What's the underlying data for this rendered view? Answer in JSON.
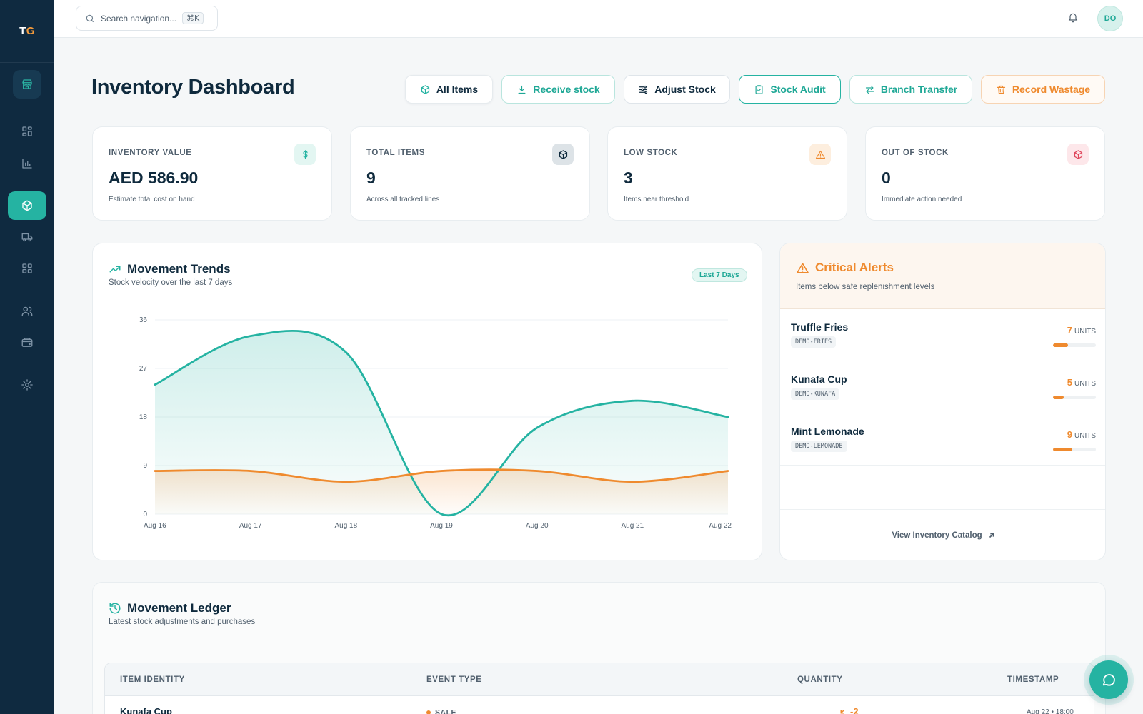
{
  "app": {
    "logo_t": "T",
    "logo_g": "G"
  },
  "sidebar": {
    "items": [
      {
        "name": "store-icon"
      },
      {
        "name": "dashboard-grid-icon"
      },
      {
        "name": "bar-chart-icon"
      },
      {
        "name": "box-icon",
        "active": true
      },
      {
        "name": "truck-icon"
      },
      {
        "name": "apps-grid-icon"
      },
      {
        "name": "users-icon"
      },
      {
        "name": "wallet-icon"
      },
      {
        "name": "gear-icon"
      }
    ]
  },
  "topbar": {
    "search_placeholder": "Search navigation...",
    "shortcut": "⌘K",
    "avatar_initials": "DO"
  },
  "header": {
    "title": "Inventory Dashboard",
    "actions": {
      "all_items": "All Items",
      "receive": "Receive stock",
      "adjust": "Adjust Stock",
      "audit": "Stock Audit",
      "transfer": "Branch Transfer",
      "wastage": "Record Wastage"
    }
  },
  "stats": [
    {
      "label": "INVENTORY VALUE",
      "value": "AED 586.90",
      "sub": "Estimate total cost on hand",
      "icon": "dollar-icon",
      "color": "#25b3a2"
    },
    {
      "label": "TOTAL ITEMS",
      "value": "9",
      "sub": "Across all tracked lines",
      "icon": "box-icon",
      "color": "#0f2a3d"
    },
    {
      "label": "LOW STOCK",
      "value": "3",
      "sub": "Items near threshold",
      "icon": "warning-icon",
      "color": "#ef8a2e"
    },
    {
      "label": "OUT OF STOCK",
      "value": "0",
      "sub": "Immediate action needed",
      "icon": "box-alert-icon",
      "color": "#e0465c"
    }
  ],
  "trends": {
    "title": "Movement Trends",
    "subtitle": "Stock velocity over the last 7 days",
    "range_badge": "Last 7 Days"
  },
  "chart_data": {
    "type": "area",
    "categories": [
      "Aug 16",
      "Aug 17",
      "Aug 18",
      "Aug 19",
      "Aug 20",
      "Aug 21",
      "Aug 22"
    ],
    "series": [
      {
        "values": [
          24,
          33,
          30,
          0,
          16,
          21,
          18
        ],
        "color": "#25b3a2"
      },
      {
        "values": [
          8,
          8,
          6,
          8,
          8,
          6,
          8
        ],
        "color": "#ef8a2e"
      }
    ],
    "yticks": [
      0,
      9,
      18,
      27,
      36
    ],
    "ylim": [
      0,
      36
    ],
    "grid": true
  },
  "alerts": {
    "title": "Critical Alerts",
    "subtitle": "Items below safe replenishment levels",
    "unit_label": "UNITS",
    "items": [
      {
        "name": "Truffle Fries",
        "code": "DEMO-FRIES",
        "qty": "7",
        "level": 0.35
      },
      {
        "name": "Kunafa Cup",
        "code": "DEMO-KUNAFA",
        "qty": "5",
        "level": 0.25
      },
      {
        "name": "Mint Lemonade",
        "code": "DEMO-LEMONADE",
        "qty": "9",
        "level": 0.45
      }
    ],
    "footer_link": "View Inventory Catalog"
  },
  "ledger": {
    "title": "Movement Ledger",
    "subtitle": "Latest stock adjustments and purchases",
    "columns": [
      "ITEM IDENTITY",
      "EVENT TYPE",
      "QUANTITY",
      "TIMESTAMP"
    ],
    "rows": [
      {
        "item": "Kunafa Cup",
        "event": "SALE",
        "qty": "-2",
        "time": "Aug 22 • 18:00"
      }
    ]
  }
}
